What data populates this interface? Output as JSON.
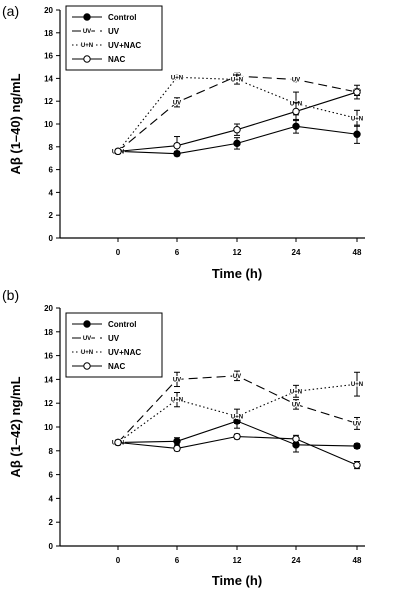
{
  "chart_data": [
    {
      "type": "line",
      "panel_label": "(a)",
      "xlabel": "Time (h)",
      "ylabel": "Aβ (1–40) ng/mL",
      "categories": [
        "0",
        "6",
        "12",
        "24",
        "48"
      ],
      "ylim": [
        0,
        20
      ],
      "yticks": [
        "0",
        "2",
        "4",
        "6",
        "8",
        "10",
        "12",
        "14",
        "16",
        "18",
        "20"
      ],
      "grid": false,
      "legend_position": "top-left",
      "series": [
        {
          "name": "Control",
          "marker": "filled-circle",
          "line": "solid",
          "values": [
            7.6,
            7.4,
            8.3,
            9.8,
            9.1
          ],
          "errors": [
            0.2,
            0.2,
            0.5,
            0.6,
            0.8
          ]
        },
        {
          "name": "UV",
          "marker": "UV",
          "line": "dashed",
          "values": [
            7.6,
            11.9,
            14.2,
            13.9,
            12.8
          ],
          "errors": [
            0.2,
            0.4,
            0.3,
            0.2,
            0.3
          ]
        },
        {
          "name": "UV+NAC",
          "marker": "U+N",
          "line": "dotted",
          "values": [
            7.6,
            14.1,
            13.9,
            11.8,
            10.5
          ],
          "errors": [
            0.2,
            0.2,
            0.4,
            1.0,
            0.7
          ]
        },
        {
          "name": "NAC",
          "marker": "open-circle",
          "line": "solid",
          "values": [
            7.6,
            8.1,
            9.5,
            11.1,
            12.8
          ],
          "errors": [
            0.2,
            0.8,
            0.5,
            0.8,
            0.6
          ]
        }
      ]
    },
    {
      "type": "line",
      "panel_label": "(b)",
      "xlabel": "Time (h)",
      "ylabel": "Aβ (1–42) ng/mL",
      "categories": [
        "0",
        "6",
        "12",
        "24",
        "48"
      ],
      "ylim": [
        0,
        20
      ],
      "yticks": [
        "0",
        "2",
        "4",
        "6",
        "8",
        "10",
        "12",
        "14",
        "16",
        "18",
        "20"
      ],
      "grid": false,
      "legend_position": "top-left",
      "series": [
        {
          "name": "Control",
          "marker": "filled-circle",
          "line": "solid",
          "values": [
            8.7,
            8.8,
            10.5,
            8.5,
            8.4
          ],
          "errors": [
            0.2,
            0.3,
            0.6,
            0.6,
            0.2
          ]
        },
        {
          "name": "UV",
          "marker": "UV",
          "line": "dashed",
          "values": [
            8.7,
            14.0,
            14.3,
            11.9,
            10.3
          ],
          "errors": [
            0.2,
            0.6,
            0.4,
            0.4,
            0.5
          ]
        },
        {
          "name": "UV+NAC",
          "marker": "U+N",
          "line": "dotted",
          "values": [
            8.7,
            12.3,
            10.9,
            13.0,
            13.6
          ],
          "errors": [
            0.2,
            0.6,
            0.6,
            0.5,
            1.0
          ]
        },
        {
          "name": "NAC",
          "marker": "open-circle",
          "line": "solid",
          "values": [
            8.7,
            8.2,
            9.2,
            9.0,
            6.8
          ],
          "errors": [
            0.2,
            0.2,
            0.2,
            0.3,
            0.3
          ]
        }
      ]
    }
  ]
}
